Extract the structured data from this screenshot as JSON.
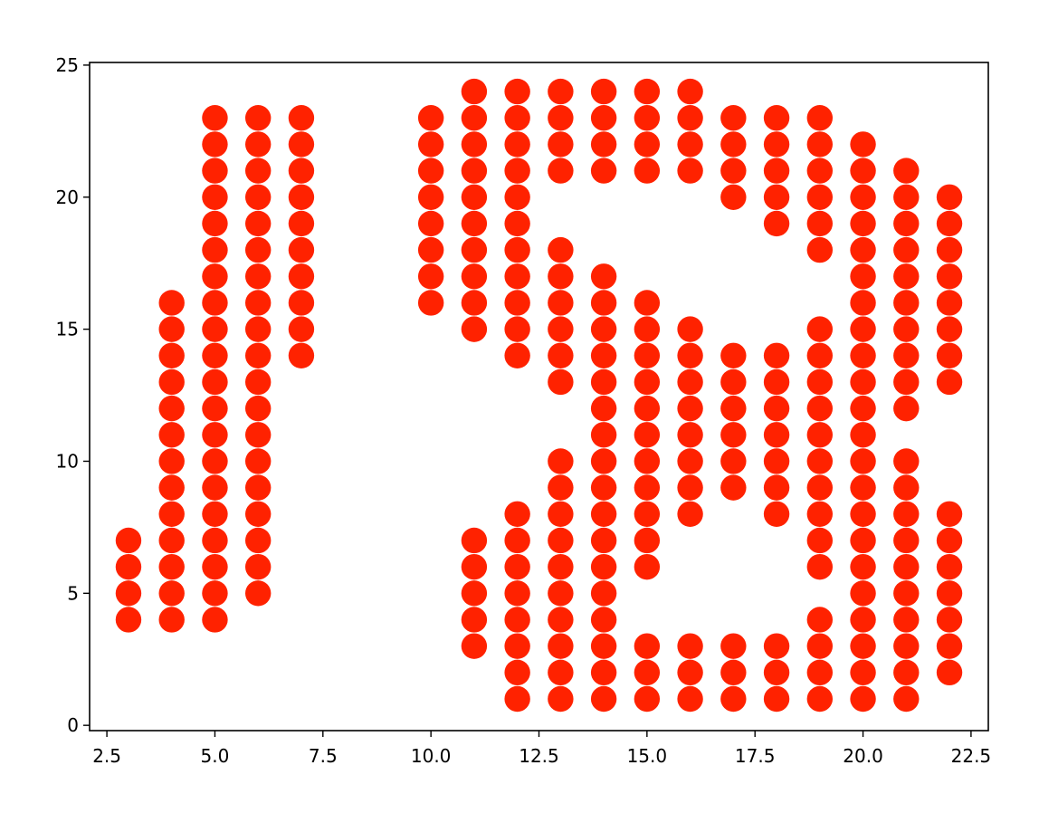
{
  "chart_data": {
    "type": "scatter",
    "title": "",
    "xlabel": "",
    "ylabel": "",
    "xlim": [
      2.1,
      22.9
    ],
    "ylim": [
      -0.2,
      25.1
    ],
    "grid": false,
    "marker_color": "#ff2200",
    "x_ticks": [
      "2.5",
      "5.0",
      "7.5",
      "10.0",
      "12.5",
      "15.0",
      "17.5",
      "20.0",
      "22.5"
    ],
    "y_ticks": [
      "0",
      "5",
      "10",
      "15",
      "20",
      "25"
    ],
    "columns": [
      {
        "x": 3,
        "y": [
          4,
          5,
          6,
          7
        ]
      },
      {
        "x": 4,
        "y": [
          4,
          5,
          6,
          7,
          8,
          9,
          10,
          11,
          12,
          13,
          14,
          15,
          16
        ]
      },
      {
        "x": 5,
        "y": [
          4,
          5,
          6,
          7,
          8,
          9,
          10,
          11,
          12,
          13,
          14,
          15,
          16,
          17,
          18,
          19,
          20,
          21,
          22,
          23
        ]
      },
      {
        "x": 6,
        "y": [
          5,
          6,
          7,
          8,
          9,
          10,
          11,
          12,
          13,
          14,
          15,
          16,
          17,
          18,
          19,
          20,
          21,
          22,
          23
        ]
      },
      {
        "x": 7,
        "y": [
          14,
          15,
          16,
          17,
          18,
          19,
          20,
          21,
          22,
          23
        ]
      },
      {
        "x": 10,
        "y": [
          16,
          17,
          18,
          19,
          20,
          21,
          22,
          23
        ]
      },
      {
        "x": 11,
        "y": [
          3,
          4,
          5,
          6,
          7,
          15,
          16,
          17,
          18,
          19,
          20,
          21,
          22,
          23,
          24
        ]
      },
      {
        "x": 12,
        "y": [
          1,
          2,
          3,
          4,
          5,
          6,
          7,
          8,
          14,
          15,
          16,
          17,
          18,
          19,
          20,
          21,
          22,
          23,
          24
        ]
      },
      {
        "x": 13,
        "y": [
          1,
          2,
          3,
          4,
          5,
          6,
          7,
          8,
          9,
          10,
          13,
          14,
          15,
          16,
          17,
          18,
          21,
          22,
          23,
          24
        ]
      },
      {
        "x": 14,
        "y": [
          1,
          2,
          3,
          4,
          5,
          6,
          7,
          8,
          9,
          10,
          11,
          12,
          13,
          14,
          15,
          16,
          17,
          21,
          22,
          23,
          24
        ]
      },
      {
        "x": 15,
        "y": [
          1,
          2,
          3,
          6,
          7,
          8,
          9,
          10,
          11,
          12,
          13,
          14,
          15,
          16,
          21,
          22,
          23,
          24
        ]
      },
      {
        "x": 16,
        "y": [
          1,
          2,
          3,
          8,
          9,
          10,
          11,
          12,
          13,
          14,
          15,
          21,
          22,
          23,
          24
        ]
      },
      {
        "x": 17,
        "y": [
          1,
          2,
          3,
          9,
          10,
          11,
          12,
          13,
          14,
          20,
          21,
          22,
          23
        ]
      },
      {
        "x": 18,
        "y": [
          1,
          2,
          3,
          8,
          9,
          10,
          11,
          12,
          13,
          14,
          19,
          20,
          21,
          22,
          23
        ]
      },
      {
        "x": 19,
        "y": [
          1,
          2,
          3,
          4,
          6,
          7,
          8,
          9,
          10,
          11,
          12,
          13,
          14,
          15,
          18,
          19,
          20,
          21,
          22,
          23
        ]
      },
      {
        "x": 20,
        "y": [
          1,
          2,
          3,
          4,
          5,
          6,
          7,
          8,
          9,
          10,
          11,
          12,
          13,
          14,
          15,
          16,
          17,
          18,
          19,
          20,
          21,
          22
        ]
      },
      {
        "x": 21,
        "y": [
          1,
          2,
          3,
          4,
          5,
          6,
          7,
          8,
          9,
          10,
          12,
          13,
          14,
          15,
          16,
          17,
          18,
          19,
          20,
          21
        ]
      },
      {
        "x": 22,
        "y": [
          2,
          3,
          4,
          5,
          6,
          7,
          8,
          13,
          14,
          15,
          16,
          17,
          18,
          19,
          20
        ]
      }
    ]
  }
}
